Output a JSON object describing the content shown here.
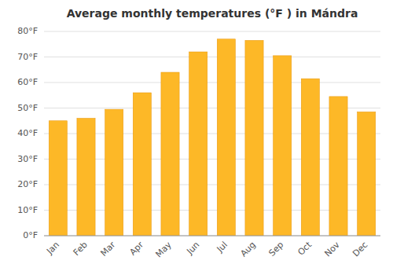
{
  "chart_data": {
    "type": "bar",
    "title": "Average monthly temperatures (°F ) in Mándra",
    "categories": [
      "Jan",
      "Feb",
      "Mar",
      "Apr",
      "May",
      "Jun",
      "Jul",
      "Aug",
      "Sep",
      "Oct",
      "Nov",
      "Dec"
    ],
    "values": [
      45,
      46,
      49.5,
      56,
      64,
      72,
      77,
      76.5,
      70.5,
      61.5,
      54.5,
      48.5
    ],
    "color": "#FDB827",
    "ylim": [
      0,
      80
    ],
    "yticks": [
      {
        "value": 0,
        "label": "0°F"
      },
      {
        "value": 10,
        "label": "10°F"
      },
      {
        "value": 20,
        "label": "20°F"
      },
      {
        "value": 30,
        "label": "30°F"
      },
      {
        "value": 40,
        "label": "40°F"
      },
      {
        "value": 50,
        "label": "50°F"
      },
      {
        "value": 60,
        "label": "60°F"
      },
      {
        "value": 70,
        "label": "70°F"
      },
      {
        "value": 80,
        "label": "80°F"
      }
    ],
    "grid": true
  }
}
